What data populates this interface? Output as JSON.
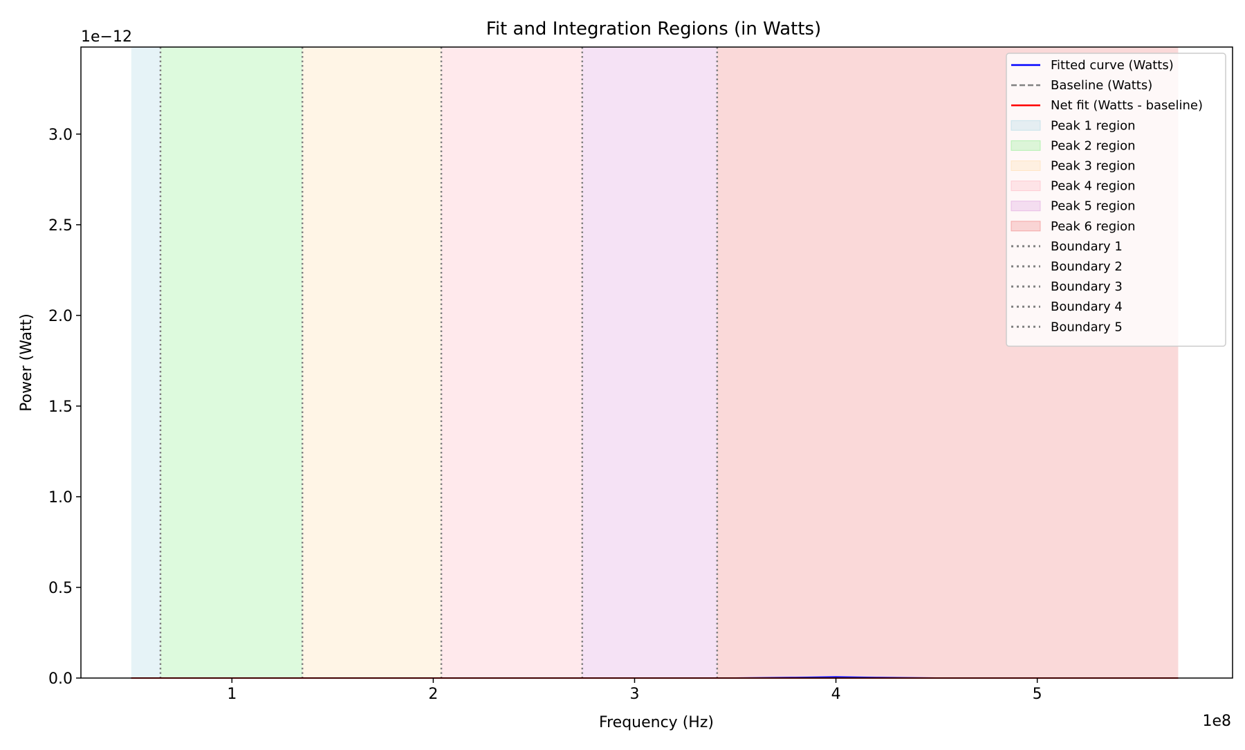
{
  "chart_data": {
    "type": "area",
    "title": "Fit and Integration Regions (in Watts)",
    "xlabel": "Frequency (Hz)",
    "ylabel": "Power (Watt)",
    "x_offset_label": "1e8",
    "y_offset_label": "1e−12",
    "xlim": [
      25000000,
      597000000
    ],
    "ylim": [
      0,
      3.48e-12
    ],
    "x_ticks": [
      100000000,
      200000000,
      300000000,
      400000000,
      500000000
    ],
    "x_tick_labels": [
      "1",
      "2",
      "3",
      "4",
      "5"
    ],
    "y_ticks": [
      0,
      5e-13,
      1e-12,
      1.5e-12,
      2e-12,
      2.5e-12,
      3e-12
    ],
    "y_tick_labels": [
      "0.0",
      "0.5",
      "1.0",
      "1.5",
      "2.0",
      "2.5",
      "3.0"
    ],
    "grid": false,
    "legend_position": "top-right",
    "regions": [
      {
        "name": "Peak 1 region",
        "x0": 50000000,
        "x1": 64500000,
        "color": "#add8e6",
        "opacity": 0.3
      },
      {
        "name": "Peak 2 region",
        "x0": 64500000,
        "x1": 135000000,
        "color": "#90ee90",
        "opacity": 0.3
      },
      {
        "name": "Peak 3 region",
        "x0": 135000000,
        "x1": 204000000,
        "color": "#ffdead",
        "opacity": 0.3
      },
      {
        "name": "Peak 4 region",
        "x0": 204000000,
        "x1": 274000000,
        "color": "#ffb6c1",
        "opacity": 0.3
      },
      {
        "name": "Peak 5 region",
        "x0": 274000000,
        "x1": 341000000,
        "color": "#dda0dd",
        "opacity": 0.3
      },
      {
        "name": "Peak 6 region",
        "x0": 341000000,
        "x1": 570000000,
        "color": "#f08080",
        "opacity": 0.3
      }
    ],
    "boundaries": [
      {
        "name": "Boundary 1",
        "x": 64500000
      },
      {
        "name": "Boundary 2",
        "x": 135000000
      },
      {
        "name": "Boundary 3",
        "x": 204000000
      },
      {
        "name": "Boundary 4",
        "x": 274000000
      },
      {
        "name": "Boundary 5",
        "x": 341000000
      }
    ],
    "boundary_color": "#808080",
    "series": [
      {
        "name": "Fitted curve (Watts)",
        "color": "#0000ff",
        "style": "solid",
        "x": [
          50000000,
          150000000,
          250000000,
          350000000,
          380000000,
          400000000,
          420000000,
          450000000,
          570000000
        ],
        "y": [
          0,
          0,
          0,
          0,
          3e-15,
          6e-15,
          3e-15,
          0,
          0
        ]
      },
      {
        "name": "Baseline (Watts)",
        "color": "#808080",
        "style": "dashed",
        "x": [
          50000000,
          570000000
        ],
        "y": [
          0,
          0
        ]
      },
      {
        "name": "Net fit (Watts - baseline)",
        "color": "#ff0000",
        "style": "solid",
        "x": [
          50000000,
          570000000
        ],
        "y": [
          0,
          0
        ]
      }
    ]
  }
}
